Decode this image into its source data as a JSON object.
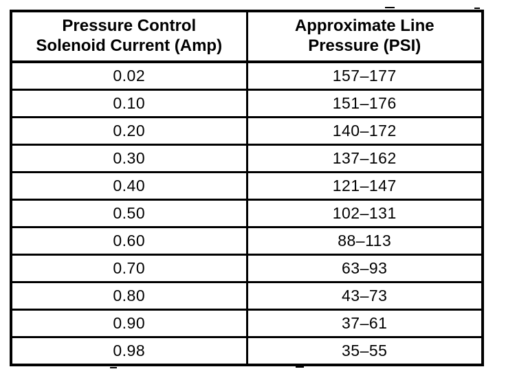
{
  "table": {
    "columns": [
      {
        "line1": "Pressure Control",
        "line2": "Solenoid Current (Amp)"
      },
      {
        "line1": "Approximate Line",
        "line2": "Pressure (PSI)"
      }
    ],
    "rows": [
      {
        "current": "0.02",
        "pressure": "157–177"
      },
      {
        "current": "0.10",
        "pressure": "151–176"
      },
      {
        "current": "0.20",
        "pressure": "140–172"
      },
      {
        "current": "0.30",
        "pressure": "137–162"
      },
      {
        "current": "0.40",
        "pressure": "121–147"
      },
      {
        "current": "0.50",
        "pressure": "102–131"
      },
      {
        "current": "0.60",
        "pressure": "88–113"
      },
      {
        "current": "0.70",
        "pressure": "63–93"
      },
      {
        "current": "0.80",
        "pressure": "43–73"
      },
      {
        "current": "0.90",
        "pressure": "37–61"
      },
      {
        "current": "0.98",
        "pressure": "35–55"
      }
    ],
    "text_color": "#000000",
    "background_color": "#ffffff",
    "border_color": "#000000"
  },
  "chart_data": {
    "type": "table",
    "title": "",
    "columns": [
      "Pressure Control Solenoid Current (Amp)",
      "Approximate Line Pressure (PSI)"
    ],
    "current_amps": [
      0.02,
      0.1,
      0.2,
      0.3,
      0.4,
      0.5,
      0.6,
      0.7,
      0.8,
      0.9,
      0.98
    ],
    "pressure_min_psi": [
      157,
      151,
      140,
      137,
      121,
      102,
      88,
      63,
      43,
      37,
      35
    ],
    "pressure_max_psi": [
      177,
      176,
      172,
      162,
      147,
      131,
      113,
      93,
      73,
      61,
      55
    ]
  }
}
